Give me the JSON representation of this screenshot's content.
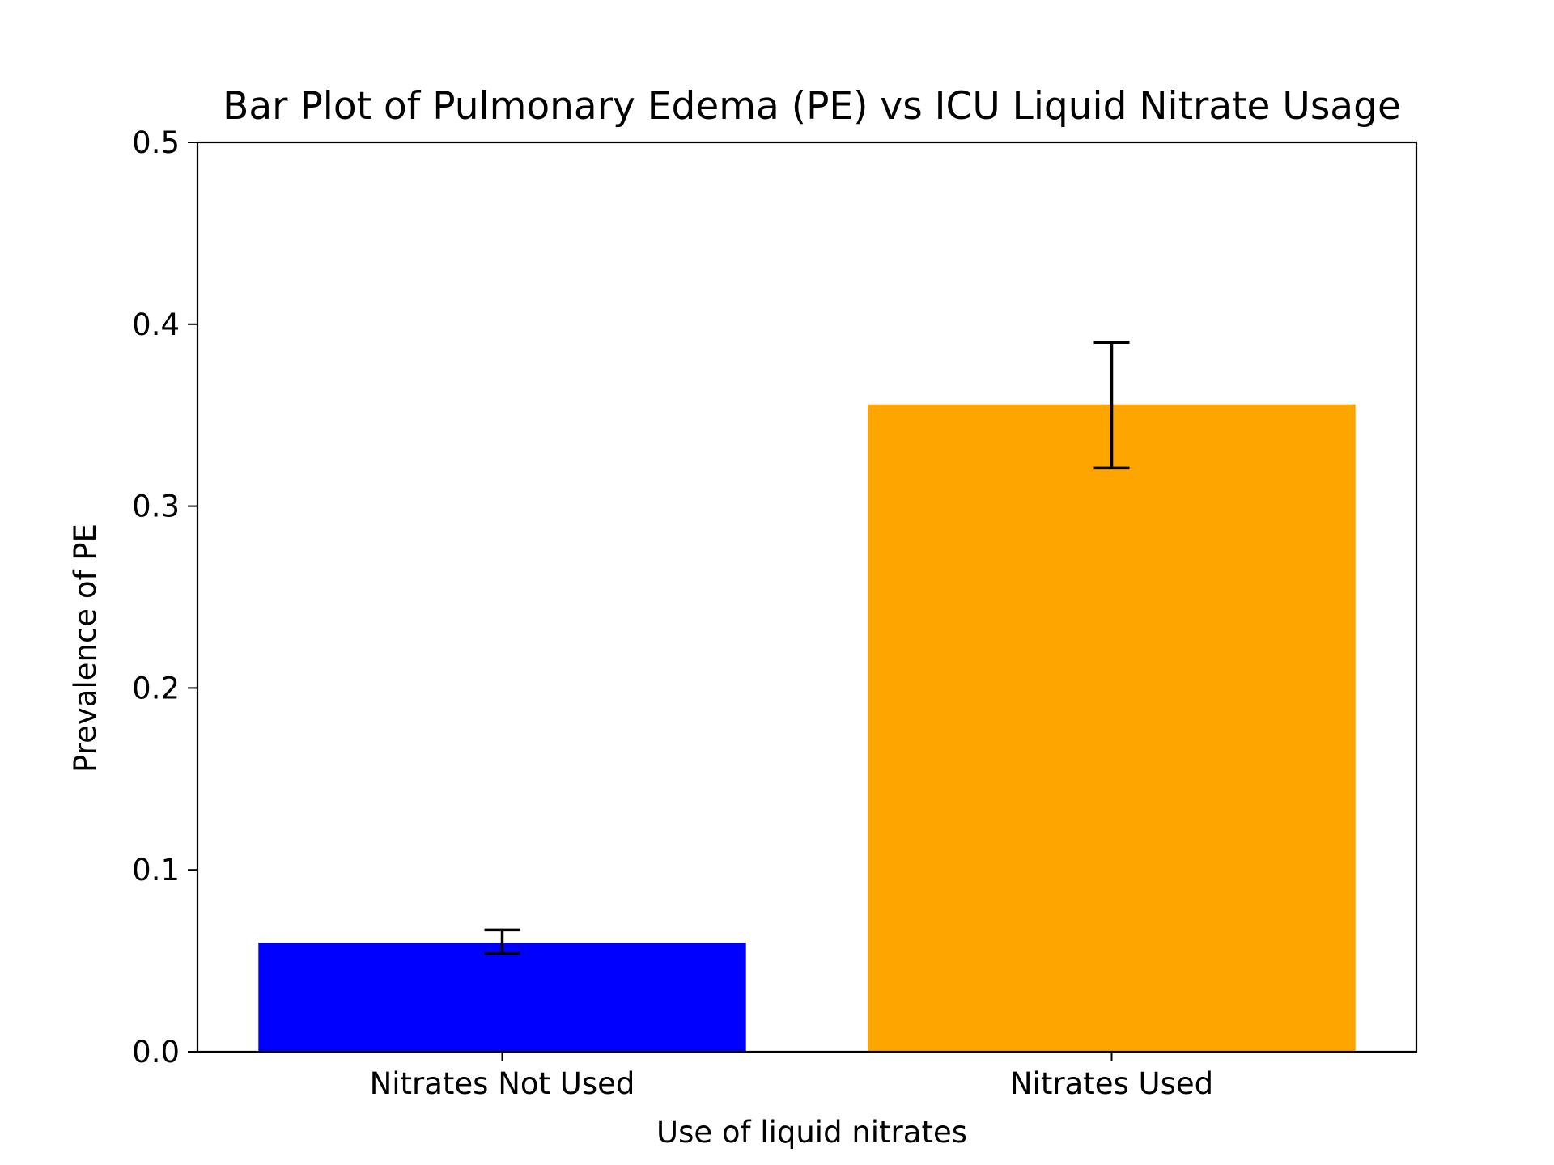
{
  "chart_data": {
    "type": "bar",
    "title": "Bar Plot of Pulmonary Edema (PE) vs ICU Liquid Nitrate Usage",
    "xlabel": "Use of liquid nitrates",
    "ylabel": "Prevalence of PE",
    "categories": [
      "Nitrates Not Used",
      "Nitrates Used"
    ],
    "values": [
      0.06,
      0.356
    ],
    "error_low": [
      0.054,
      0.321
    ],
    "error_high": [
      0.067,
      0.39
    ],
    "colors": [
      "#0000ff",
      "#ffa500"
    ],
    "ylim": [
      0,
      0.5
    ],
    "yticks": [
      "0.0",
      "0.1",
      "0.2",
      "0.3",
      "0.4",
      "0.5"
    ],
    "grid": false,
    "legend": "none"
  }
}
